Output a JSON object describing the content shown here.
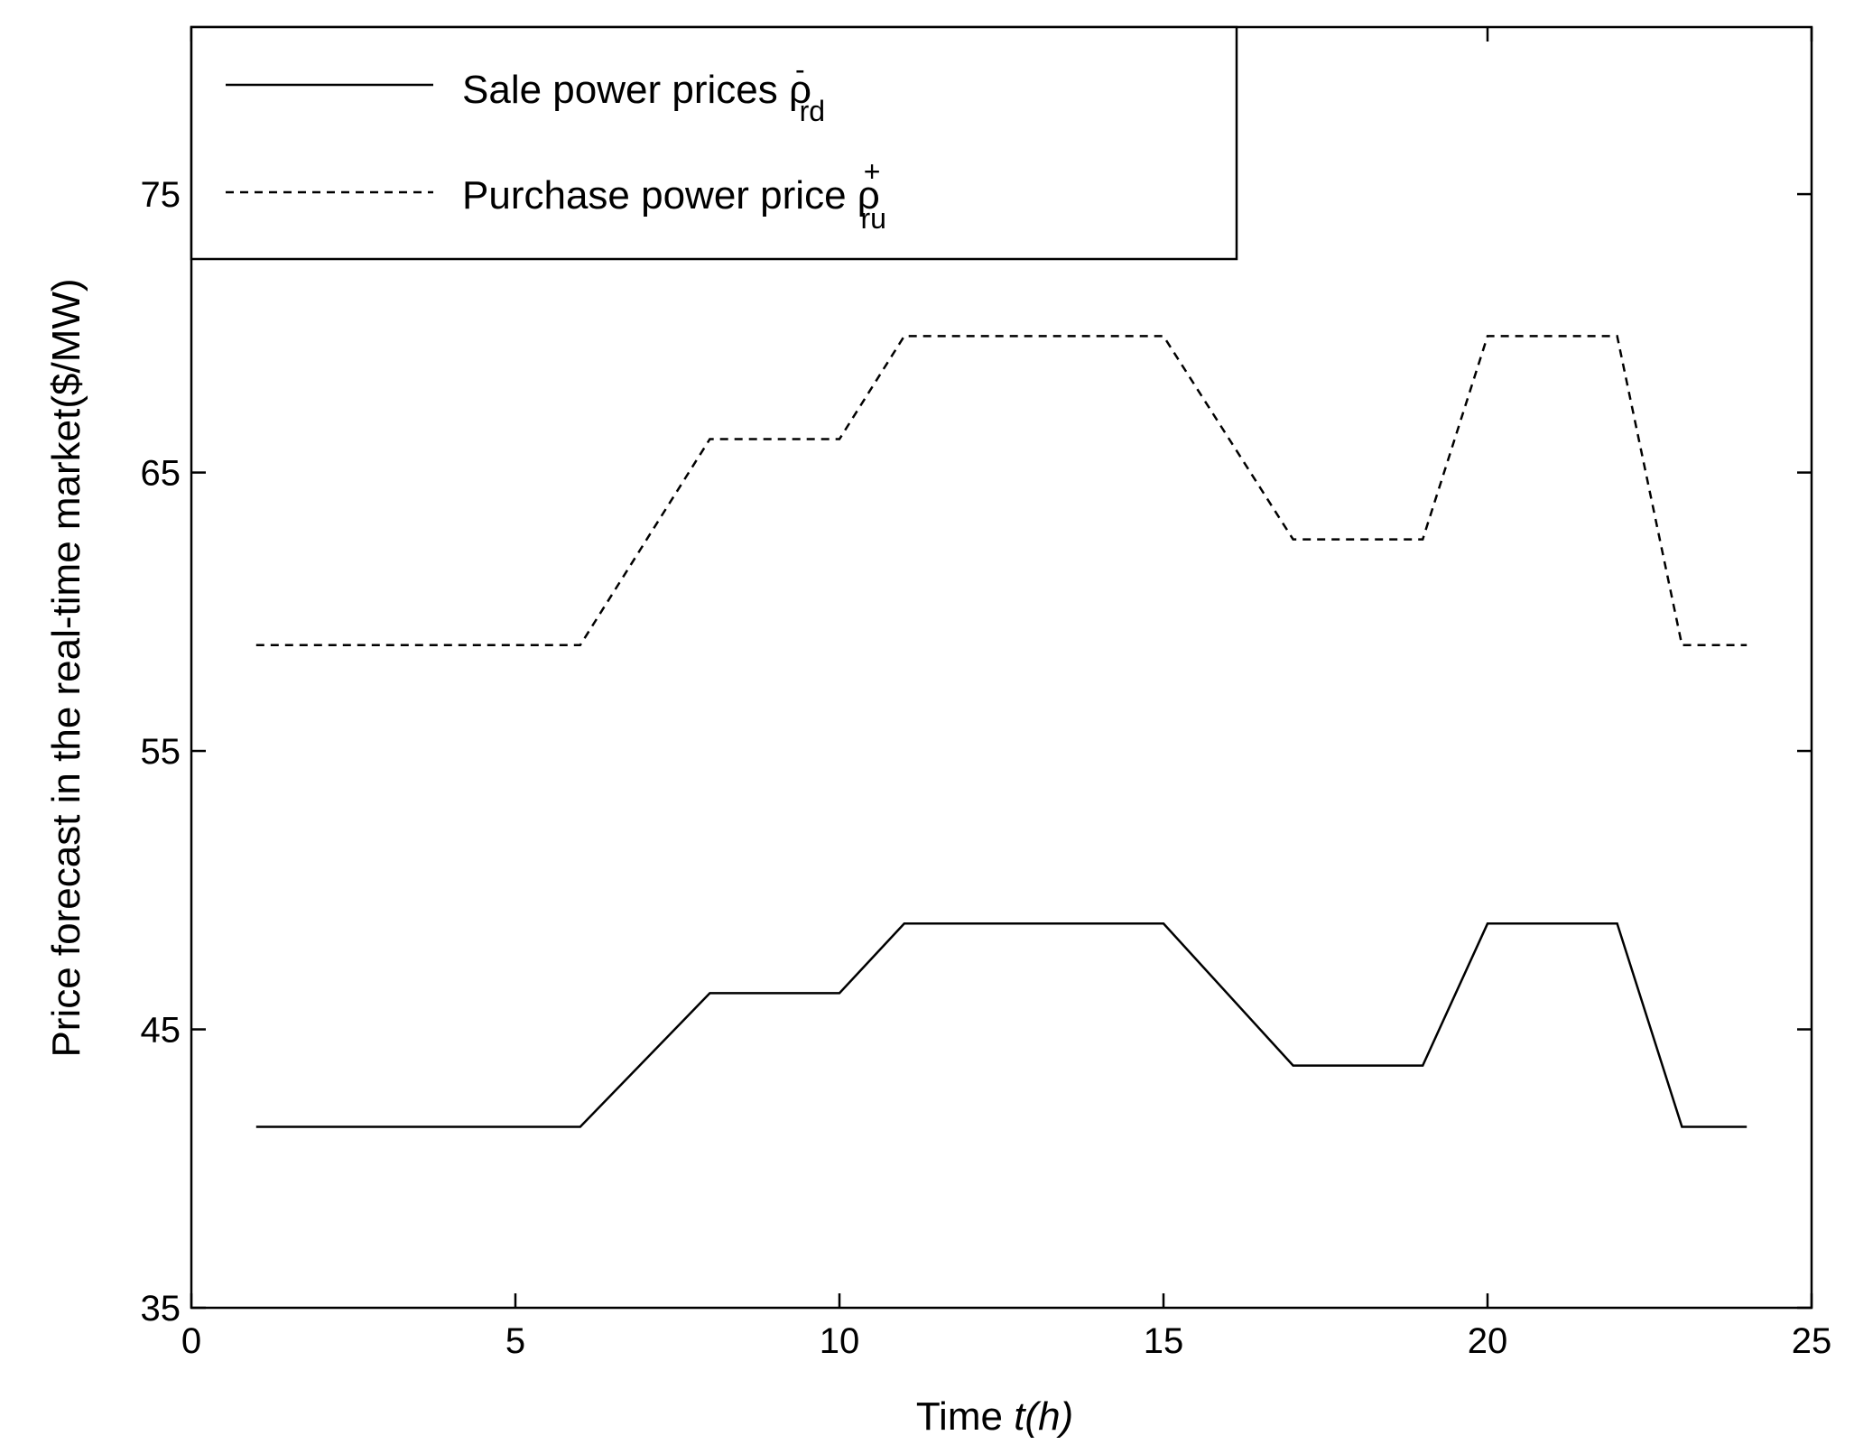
{
  "chart_data": {
    "type": "line",
    "xlabel_prefix": "Time ",
    "xlabel_italic": "t(h)",
    "ylabel": "Price forecast in the real-time market($/MW)",
    "xlim": [
      0,
      25
    ],
    "ylim": [
      35,
      81
    ],
    "xticks": [
      0,
      5,
      10,
      15,
      20,
      25
    ],
    "yticks": [
      35,
      45,
      55,
      65,
      75
    ],
    "grid": false,
    "legend_position": "top-left",
    "series": [
      {
        "legend_text": "Sale power prices ",
        "symbol": "ρ",
        "superscript": "-",
        "subscript": "rd",
        "style": "solid",
        "color": "#000000",
        "x": [
          1,
          6,
          8,
          10,
          11,
          15,
          17,
          19,
          20,
          22,
          23,
          24
        ],
        "y": [
          41.5,
          41.5,
          46.3,
          46.3,
          48.8,
          48.8,
          43.7,
          43.7,
          48.8,
          48.8,
          41.5,
          41.5
        ]
      },
      {
        "legend_text": "Purchase power price ",
        "symbol": "ρ",
        "superscript": "+",
        "subscript": "ru",
        "style": "dashed",
        "color": "#000000",
        "x": [
          1,
          6,
          8,
          10,
          11,
          15,
          17,
          19,
          20,
          22,
          23,
          24
        ],
        "y": [
          58.8,
          58.8,
          66.2,
          66.2,
          69.9,
          69.9,
          62.6,
          62.6,
          69.9,
          69.9,
          58.8,
          58.8
        ]
      }
    ]
  }
}
